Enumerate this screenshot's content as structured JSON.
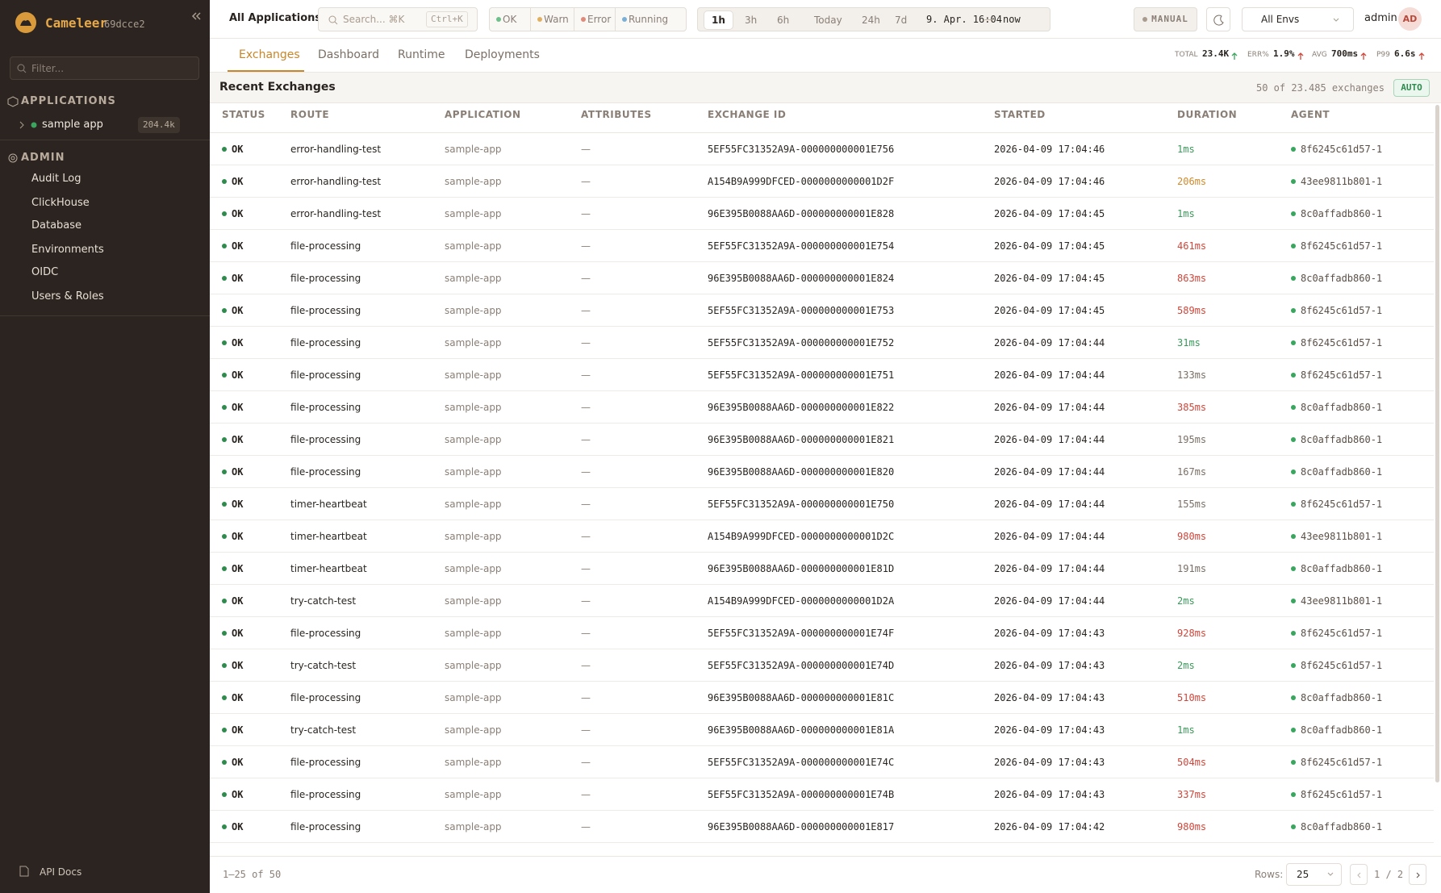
{
  "sidebar": {
    "brand": "Cameleer",
    "version": "69dcce2",
    "filter": "Filter...",
    "applications_title": "APPLICATIONS",
    "app": {
      "name": "sample app",
      "count": "204.4k"
    },
    "admin_title": "ADMIN",
    "admin_items": [
      "Audit Log",
      "ClickHouse",
      "Database",
      "Environments",
      "OIDC",
      "Users & Roles"
    ],
    "footer": "API Docs"
  },
  "topbar": {
    "scope": "All Applications",
    "search": "Search... ⌘K",
    "shortcut": "Ctrl+K",
    "status_filters": [
      "OK",
      "Warn",
      "Error",
      "Running"
    ],
    "time_ranges": [
      "1h",
      "3h",
      "6h",
      "Today",
      "24h",
      "7d"
    ],
    "range_from": "9. Apr. 16:04",
    "range_sep": "—",
    "range_to": "now",
    "mode": "MANUAL",
    "env": "All Envs",
    "user": "admin",
    "avatar": "AD"
  },
  "tabs": [
    "Exchanges",
    "Dashboard",
    "Runtime",
    "Deployments"
  ],
  "kpis": [
    {
      "label": "TOTAL",
      "value": "23.4K"
    },
    {
      "label": "ERR%",
      "value": "1.9%"
    },
    {
      "label": "AVG",
      "value": "700ms"
    },
    {
      "label": "P99",
      "value": "6.6s"
    }
  ],
  "table": {
    "title": "Recent Exchanges",
    "summary": "50 of 23.485 exchanges",
    "badge": "AUTO",
    "columns": [
      "STATUS",
      "ROUTE",
      "APPLICATION",
      "ATTRIBUTES",
      "EXCHANGE ID",
      "STARTED",
      "DURATION",
      "AGENT"
    ],
    "rows": [
      [
        "OK",
        "error-handling-test",
        "sample-app",
        "—",
        "5EF55FC31352A9A-000000000001E756",
        "2026-04-09 17:04:46",
        "1ms",
        "8f6245c61d57-1"
      ],
      [
        "OK",
        "error-handling-test",
        "sample-app",
        "—",
        "A154B9A999DFCED-0000000000001D2F",
        "2026-04-09 17:04:46",
        "206ms",
        "43ee9811b801-1"
      ],
      [
        "OK",
        "error-handling-test",
        "sample-app",
        "—",
        "96E395B0088AA6D-000000000001E828",
        "2026-04-09 17:04:45",
        "1ms",
        "8c0affadb860-1"
      ],
      [
        "OK",
        "file-processing",
        "sample-app",
        "—",
        "5EF55FC31352A9A-000000000001E754",
        "2026-04-09 17:04:45",
        "461ms",
        "8f6245c61d57-1"
      ],
      [
        "OK",
        "file-processing",
        "sample-app",
        "—",
        "96E395B0088AA6D-000000000001E824",
        "2026-04-09 17:04:45",
        "863ms",
        "8c0affadb860-1"
      ],
      [
        "OK",
        "file-processing",
        "sample-app",
        "—",
        "5EF55FC31352A9A-000000000001E753",
        "2026-04-09 17:04:45",
        "589ms",
        "8f6245c61d57-1"
      ],
      [
        "OK",
        "file-processing",
        "sample-app",
        "—",
        "5EF55FC31352A9A-000000000001E752",
        "2026-04-09 17:04:44",
        "31ms",
        "8f6245c61d57-1"
      ],
      [
        "OK",
        "file-processing",
        "sample-app",
        "—",
        "5EF55FC31352A9A-000000000001E751",
        "2026-04-09 17:04:44",
        "133ms",
        "8f6245c61d57-1"
      ],
      [
        "OK",
        "file-processing",
        "sample-app",
        "—",
        "96E395B0088AA6D-000000000001E822",
        "2026-04-09 17:04:44",
        "385ms",
        "8c0affadb860-1"
      ],
      [
        "OK",
        "file-processing",
        "sample-app",
        "—",
        "96E395B0088AA6D-000000000001E821",
        "2026-04-09 17:04:44",
        "195ms",
        "8c0affadb860-1"
      ],
      [
        "OK",
        "file-processing",
        "sample-app",
        "—",
        "96E395B0088AA6D-000000000001E820",
        "2026-04-09 17:04:44",
        "167ms",
        "8c0affadb860-1"
      ],
      [
        "OK",
        "timer-heartbeat",
        "sample-app",
        "—",
        "5EF55FC31352A9A-000000000001E750",
        "2026-04-09 17:04:44",
        "155ms",
        "8f6245c61d57-1"
      ],
      [
        "OK",
        "timer-heartbeat",
        "sample-app",
        "—",
        "A154B9A999DFCED-0000000000001D2C",
        "2026-04-09 17:04:44",
        "980ms",
        "43ee9811b801-1"
      ],
      [
        "OK",
        "timer-heartbeat",
        "sample-app",
        "—",
        "96E395B0088AA6D-000000000001E81D",
        "2026-04-09 17:04:44",
        "191ms",
        "8c0affadb860-1"
      ],
      [
        "OK",
        "try-catch-test",
        "sample-app",
        "—",
        "A154B9A999DFCED-0000000000001D2A",
        "2026-04-09 17:04:44",
        "2ms",
        "43ee9811b801-1"
      ],
      [
        "OK",
        "file-processing",
        "sample-app",
        "—",
        "5EF55FC31352A9A-000000000001E74F",
        "2026-04-09 17:04:43",
        "928ms",
        "8f6245c61d57-1"
      ],
      [
        "OK",
        "try-catch-test",
        "sample-app",
        "—",
        "5EF55FC31352A9A-000000000001E74D",
        "2026-04-09 17:04:43",
        "2ms",
        "8f6245c61d57-1"
      ],
      [
        "OK",
        "file-processing",
        "sample-app",
        "—",
        "96E395B0088AA6D-000000000001E81C",
        "2026-04-09 17:04:43",
        "510ms",
        "8c0affadb860-1"
      ],
      [
        "OK",
        "try-catch-test",
        "sample-app",
        "—",
        "96E395B0088AA6D-000000000001E81A",
        "2026-04-09 17:04:43",
        "1ms",
        "8c0affadb860-1"
      ],
      [
        "OK",
        "file-processing",
        "sample-app",
        "—",
        "5EF55FC31352A9A-000000000001E74C",
        "2026-04-09 17:04:43",
        "504ms",
        "8f6245c61d57-1"
      ],
      [
        "OK",
        "file-processing",
        "sample-app",
        "—",
        "5EF55FC31352A9A-000000000001E74B",
        "2026-04-09 17:04:43",
        "337ms",
        "8f6245c61d57-1"
      ],
      [
        "OK",
        "file-processing",
        "sample-app",
        "—",
        "96E395B0088AA6D-000000000001E817",
        "2026-04-09 17:04:42",
        "980ms",
        "8c0affadb860-1"
      ]
    ]
  },
  "pagination": {
    "range": "1–25 of 50",
    "rows_label": "Rows:",
    "rows_value": "25",
    "page": "1 / 2"
  }
}
